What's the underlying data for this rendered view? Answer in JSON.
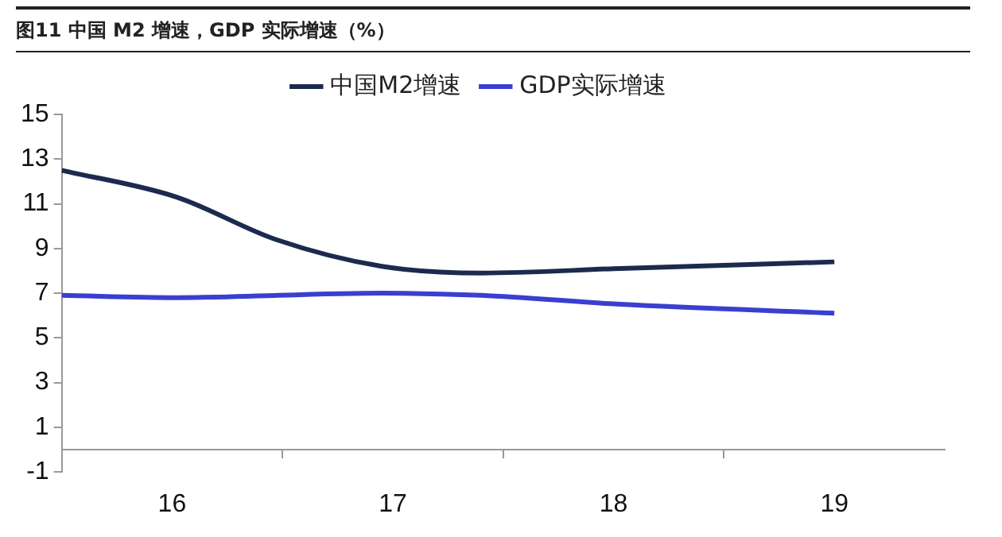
{
  "chart_data": {
    "type": "line",
    "title": "图11 中国 M2 增速，GDP 实际增速（%）",
    "x": [
      15.5,
      16.02,
      16.47,
      16.95,
      17.4,
      18.03,
      19.0
    ],
    "series": [
      {
        "name": "中国M2增速",
        "color": "#1c2a4d",
        "values": [
          12.5,
          11.3,
          9.4,
          8.2,
          7.9,
          8.1,
          8.4
        ]
      },
      {
        "name": "GDP实际增速",
        "color": "#3a3fd0",
        "x": [
          15.5,
          16.02,
          16.95,
          17.4,
          18.03,
          19.0
        ],
        "values": [
          6.9,
          6.8,
          7.0,
          6.9,
          6.5,
          6.1
        ]
      }
    ],
    "xlim": [
      15.5,
      19.5
    ],
    "xticks": [
      {
        "value": 16,
        "label": "16"
      },
      {
        "value": 16.5,
        "label": null
      },
      {
        "value": 17,
        "label": "17"
      },
      {
        "value": 17.5,
        "label": null
      },
      {
        "value": 18,
        "label": "18"
      },
      {
        "value": 18.5,
        "label": null
      },
      {
        "value": 19,
        "label": "19"
      }
    ],
    "ylim": [
      -1,
      15
    ],
    "yticks": [
      -1,
      1,
      3,
      5,
      7,
      9,
      11,
      13,
      15
    ],
    "grid": false,
    "legend": "top",
    "marker": "none",
    "line_style": "solid"
  }
}
